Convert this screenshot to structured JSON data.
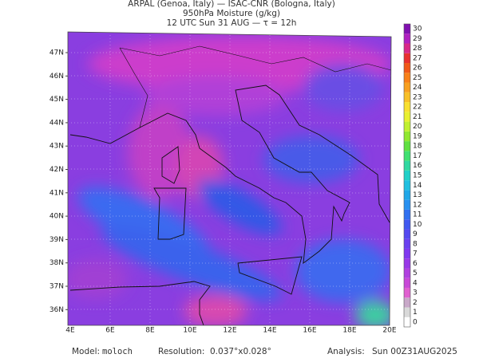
{
  "header": {
    "line1": "ARPAL (Genoa, Italy)  —  ISAC-CNR (Bologna, Italy)",
    "line2": "950hPa Moisture (g/kg)",
    "line3": "12 UTC Sun 31 AUG  —  τ = 12h"
  },
  "map": {
    "lat_labels": [
      "47N",
      "46N",
      "45N",
      "44N",
      "43N",
      "42N",
      "41N",
      "40N",
      "39N",
      "38N",
      "37N",
      "36N"
    ],
    "lon_labels": [
      "4E",
      "6E",
      "8E",
      "10E",
      "12E",
      "14E",
      "16E",
      "18E",
      "20E"
    ]
  },
  "colorbar": {
    "labels": [
      0,
      1,
      2,
      3,
      4,
      5,
      6,
      7,
      8,
      9,
      10,
      11,
      12,
      13,
      14,
      15,
      16,
      17,
      18,
      19,
      20,
      21,
      22,
      23,
      24,
      25,
      26,
      27,
      28,
      29,
      30
    ]
  },
  "footer": {
    "model_label": "Model:",
    "model": "moloch",
    "resolution_label": "Resolution:",
    "resolution": "0.037°x0.028°",
    "analysis_label": "Analysis:",
    "analysis": "Sun 00Z31AUG2025"
  }
}
